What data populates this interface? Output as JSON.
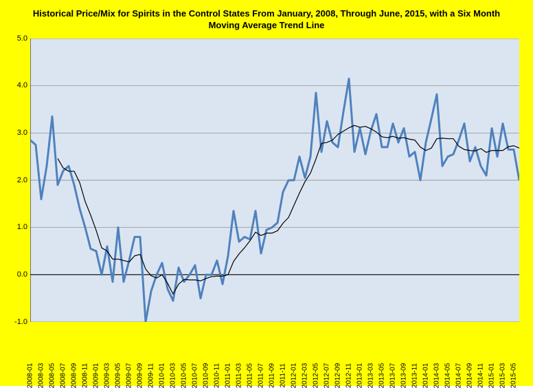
{
  "chart": {
    "type": "line",
    "title": "Historical Price/Mix for Spirits in the Control States From January, 2008, Through June, 2015, with a Six Month Moving Average Trend Line",
    "title_fontsize": 13,
    "background_outer": "#ffff00",
    "background_plot": "#dbe5f1",
    "grid_color": "#808080",
    "axis_color": "#000000",
    "ylim": [
      -1.0,
      5.0
    ],
    "ytick_step": 1.0,
    "yticks": [
      "-1.0",
      "0.0",
      "1.0",
      "2.0",
      "3.0",
      "4.0",
      "5.0"
    ],
    "xlabels_every": 2,
    "xlabels": [
      "2008-01",
      "2008-03",
      "2008-05",
      "2008-07",
      "2008-09",
      "2008-11",
      "2009-01",
      "2009-03",
      "2009-05",
      "2009-07",
      "2009-09",
      "2009-11",
      "2010-01",
      "2010-03",
      "2010-05",
      "2010-07",
      "2010-09",
      "2010-11",
      "2011-01",
      "2011-03",
      "2011-05",
      "2011-07",
      "2011-09",
      "2011-11",
      "2012-01",
      "2012-03",
      "2012-05",
      "2012-07",
      "2012-09",
      "2012-11",
      "2013-01",
      "2013-03",
      "2013-05",
      "2013-07",
      "2013-09",
      "2013-11",
      "2014-01",
      "2014-03",
      "2014-05",
      "2014-07",
      "2014-09",
      "2014-11",
      "2015-01",
      "2015-03",
      "2015-05"
    ],
    "series": [
      {
        "name": "price_mix",
        "color": "#4f81bd",
        "line_width": 3,
        "values": [
          2.85,
          2.75,
          1.6,
          2.3,
          3.35,
          1.9,
          2.2,
          2.3,
          1.9,
          1.4,
          1.0,
          0.55,
          0.5,
          0.0,
          0.6,
          -0.15,
          1.0,
          -0.15,
          0.3,
          0.8,
          0.8,
          -1.0,
          -0.35,
          0.0,
          0.25,
          -0.3,
          -0.55,
          0.15,
          -0.15,
          0.0,
          0.2,
          -0.5,
          0.0,
          0.0,
          0.3,
          -0.2,
          0.4,
          1.35,
          0.7,
          0.8,
          0.75,
          1.35,
          0.45,
          0.95,
          1.0,
          1.1,
          1.75,
          2.0,
          2.0,
          2.5,
          2.05,
          2.5,
          3.85,
          2.6,
          3.25,
          2.8,
          2.7,
          3.45,
          4.15,
          2.6,
          3.1,
          2.55,
          3.05,
          3.4,
          2.7,
          2.7,
          3.2,
          2.8,
          3.1,
          2.5,
          2.6,
          2.0,
          2.8,
          3.3,
          3.82,
          2.3,
          2.5,
          2.55,
          2.85,
          3.2,
          2.4,
          2.7,
          2.3,
          2.1,
          3.1,
          2.5,
          3.2,
          2.65,
          2.65,
          2.0
        ]
      },
      {
        "name": "moving_avg_6m",
        "color": "#000000",
        "line_width": 1.2,
        "values": [
          null,
          null,
          null,
          null,
          null,
          2.46,
          2.26,
          2.19,
          2.19,
          1.95,
          1.55,
          1.26,
          0.94,
          0.57,
          0.5,
          0.33,
          0.33,
          0.3,
          0.27,
          0.4,
          0.43,
          0.12,
          -0.02,
          -0.07,
          0.0,
          -0.18,
          -0.41,
          -0.2,
          -0.1,
          -0.11,
          -0.11,
          -0.13,
          -0.08,
          -0.04,
          -0.03,
          -0.03,
          0.0,
          0.28,
          0.44,
          0.57,
          0.72,
          0.9,
          0.83,
          0.88,
          0.88,
          0.93,
          1.09,
          1.21,
          1.47,
          1.73,
          1.97,
          2.15,
          2.45,
          2.78,
          2.8,
          2.85,
          2.97,
          3.04,
          3.11,
          3.16,
          3.12,
          3.14,
          3.09,
          3.02,
          2.92,
          2.9,
          2.93,
          2.89,
          2.9,
          2.87,
          2.85,
          2.7,
          2.63,
          2.68,
          2.88,
          2.89,
          2.88,
          2.88,
          2.72,
          2.65,
          2.63,
          2.62,
          2.67,
          2.59,
          2.63,
          2.63,
          2.63,
          2.71,
          2.73,
          2.68
        ]
      }
    ]
  }
}
